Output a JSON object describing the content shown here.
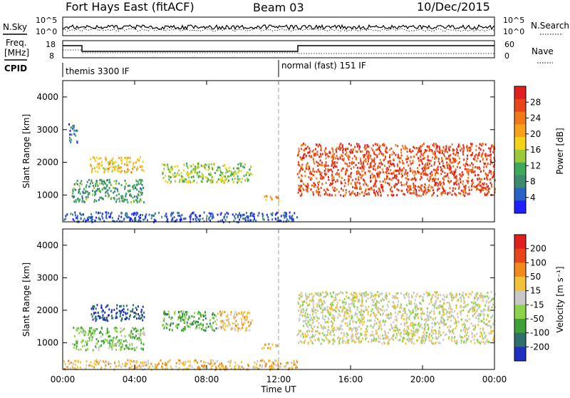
{
  "header": {
    "title_left": "Fort Hays East (fitACF)",
    "title_center": "Beam 03",
    "title_right": "10/Dec/2015"
  },
  "panels": {
    "nsky": {
      "label": "N.Sky",
      "ticks": [
        "10^5",
        "10^0"
      ],
      "right_ticks": [
        "10^5",
        "10^0"
      ],
      "right_label": "N.Search"
    },
    "freq": {
      "label_line1": "Freq.",
      "label_line2": "[MHz]",
      "ticks": [
        "18",
        "8"
      ],
      "right_ticks": [
        "60",
        "0"
      ],
      "right_label": "Nave"
    },
    "cpid": {
      "label": "CPID",
      "modes": [
        "themis 3300 IF",
        "normal (fast) 151 IF"
      ]
    }
  },
  "chart_data": [
    {
      "type": "heatmap",
      "title": "",
      "ylabel": "Slant Range [km]",
      "xlabel": "Time UT",
      "x_range_hours": [
        0,
        24
      ],
      "ylim": [
        180,
        4500
      ],
      "x_ticks": [
        "00:00",
        "04:00",
        "08:00",
        "12:00",
        "16:00",
        "20:00",
        "00:00"
      ],
      "y_ticks": [
        1000,
        2000,
        3000,
        4000
      ],
      "colorbar": {
        "label": "Power [dB]",
        "ticks": [
          "4",
          "8",
          "12",
          "16",
          "20",
          "24",
          "28"
        ],
        "colors": [
          "#1f1fff",
          "#2b62c4",
          "#3d8a6e",
          "#3fa85a",
          "#9cc93a",
          "#f2d21a",
          "#f7a21a",
          "#f07a1a",
          "#e8461a",
          "#e01f1f"
        ]
      },
      "features": [
        {
          "t_start": 0.3,
          "t_end": 0.8,
          "range_start": 2600,
          "range_end": 3200,
          "level": 0.2
        },
        {
          "t_start": 1.5,
          "t_end": 4.5,
          "range_start": 1700,
          "range_end": 2200,
          "level": 0.6
        },
        {
          "t_start": 0.5,
          "t_end": 4.5,
          "range_start": 800,
          "range_end": 1500,
          "level": 0.3
        },
        {
          "t_start": 5.5,
          "t_end": 10.5,
          "range_start": 1400,
          "range_end": 2000,
          "level": 0.45
        },
        {
          "t_start": 11.0,
          "t_end": 12.0,
          "range_start": 850,
          "range_end": 1000,
          "level": 0.65
        },
        {
          "t_start": 13.0,
          "t_end": 24.0,
          "range_start": 1000,
          "range_end": 2600,
          "level": 0.85
        },
        {
          "t_start": 0.0,
          "t_end": 13.0,
          "range_start": 200,
          "range_end": 500,
          "level": 0.15
        }
      ]
    },
    {
      "type": "heatmap",
      "title": "",
      "ylabel": "Slant Range [km]",
      "xlabel": "Time UT",
      "x_range_hours": [
        0,
        24
      ],
      "ylim": [
        180,
        4500
      ],
      "x_ticks": [
        "00:00",
        "04:00",
        "08:00",
        "12:00",
        "16:00",
        "20:00",
        "00:00"
      ],
      "y_ticks": [
        1000,
        2000,
        3000,
        4000
      ],
      "colorbar": {
        "label": "Velocity [m s⁻¹]",
        "ticks": [
          "200",
          "100",
          "50",
          "15",
          "-15",
          "-50",
          "-100",
          "-200"
        ],
        "colors": [
          "#1f2fbf",
          "#2f6e6a",
          "#3fa03a",
          "#8cd24a",
          "#c8c8c8",
          "#f2c23a",
          "#f08a1a",
          "#e8461a",
          "#e01f1f"
        ]
      },
      "features": [
        {
          "t_start": 1.5,
          "t_end": 4.5,
          "range_start": 1700,
          "range_end": 2200,
          "level": 0.1
        },
        {
          "t_start": 0.5,
          "t_end": 4.5,
          "range_start": 800,
          "range_end": 1500,
          "level": 0.35
        },
        {
          "t_start": 5.5,
          "t_end": 8.5,
          "range_start": 1400,
          "range_end": 2000,
          "level": 0.3
        },
        {
          "t_start": 8.5,
          "t_end": 10.5,
          "range_start": 1400,
          "range_end": 2000,
          "level": 0.6
        },
        {
          "t_start": 11.0,
          "t_end": 12.0,
          "range_start": 850,
          "range_end": 1000,
          "level": 0.65
        },
        {
          "t_start": 13.0,
          "t_end": 24.0,
          "range_start": 1000,
          "range_end": 2600,
          "level": 0.5
        },
        {
          "t_start": 0.0,
          "t_end": 13.0,
          "range_start": 200,
          "range_end": 500,
          "level": 0.62
        }
      ]
    }
  ]
}
